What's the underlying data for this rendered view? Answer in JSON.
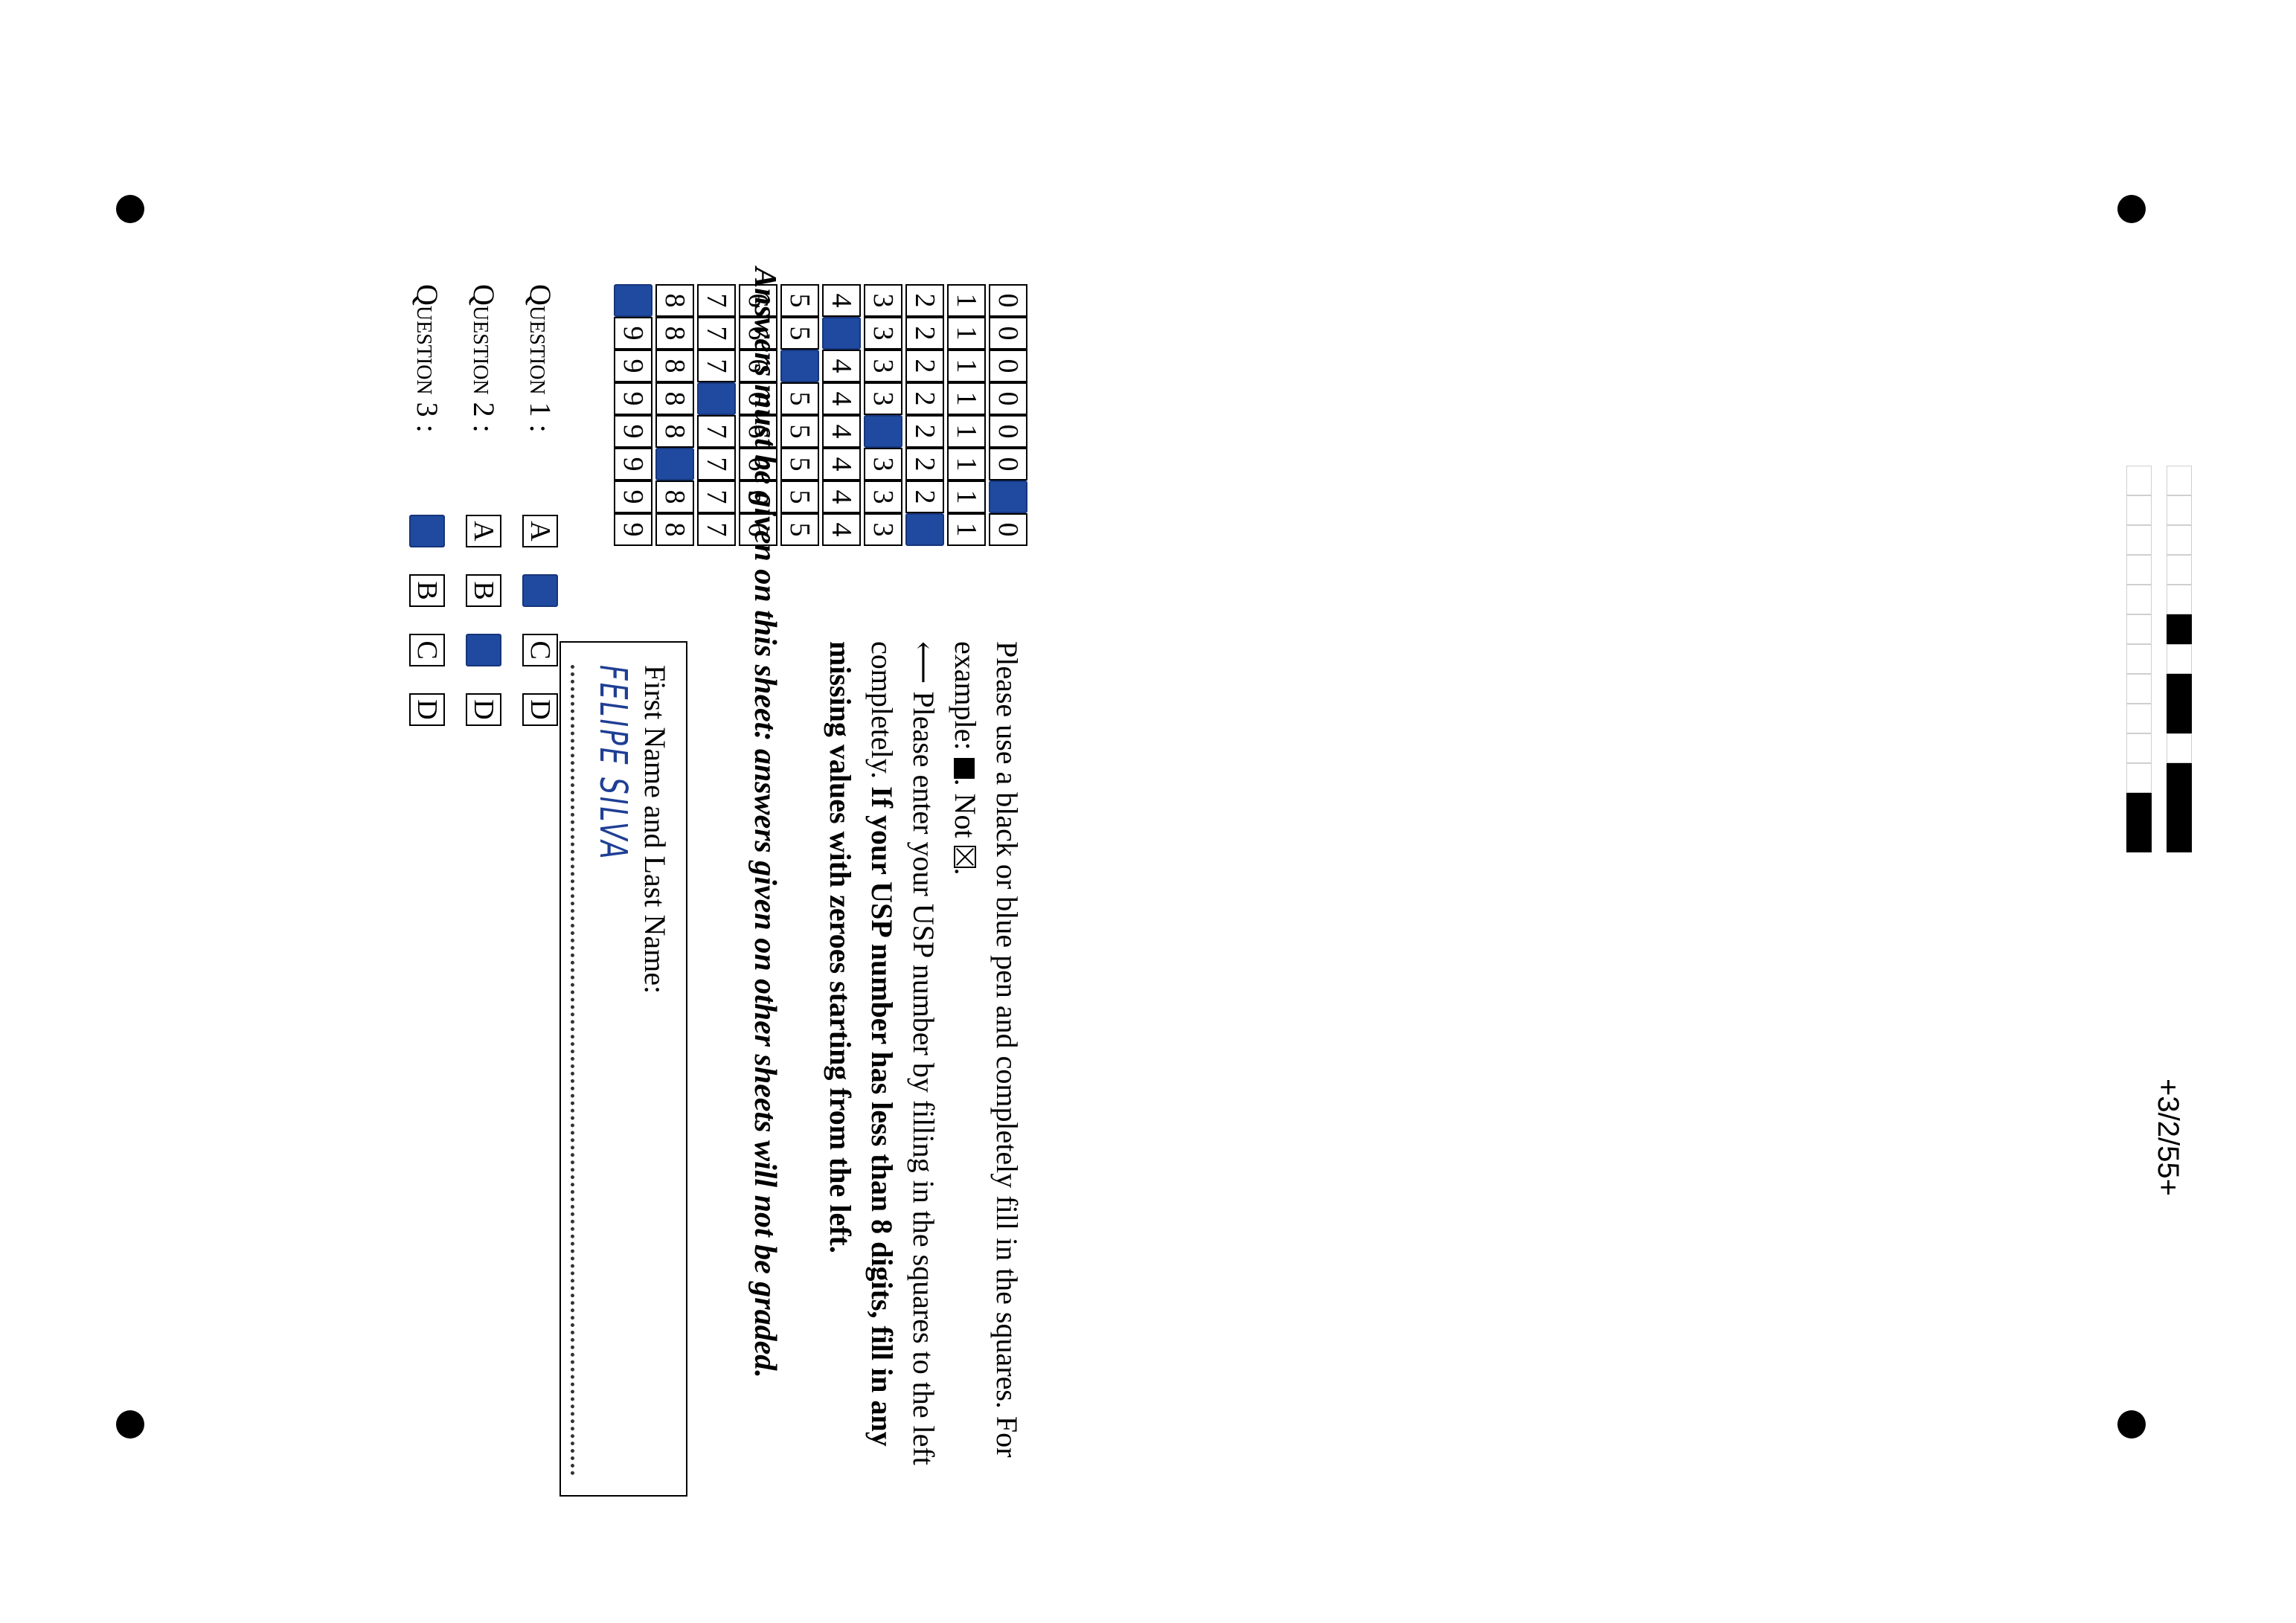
{
  "header": {
    "page_code": "+3/2/55+"
  },
  "barcode": {
    "rows": [
      [
        0,
        0,
        0,
        0,
        0,
        1,
        0,
        1,
        1,
        0,
        1,
        1,
        1
      ],
      [
        0,
        0,
        0,
        0,
        0,
        0,
        0,
        0,
        0,
        0,
        0,
        1,
        1
      ]
    ]
  },
  "usp_grid": {
    "digits": [
      "0",
      "1",
      "2",
      "3",
      "4",
      "5",
      "6",
      "7",
      "8",
      "9"
    ],
    "filled": [
      9,
      4,
      5,
      7,
      3,
      8,
      0,
      2
    ]
  },
  "instructions": {
    "pen_note_1": "Please use a black or blue pen and completely fill in the squares. For example:",
    "pen_note_2": ". Not",
    "pen_note_3": ".",
    "usp_note_1": "⟵ Please enter your USP number by filling in the squares to the left completely.",
    "usp_note_2": "If your USP number has less than 8 digits, fill in any missing values with zeroes starting from the left."
  },
  "name_field": {
    "label": "First Name and Last Name:",
    "value": "FELIPE SILVA"
  },
  "notice": "Answers must be given on this sheet: answers given on other sheets will not be graded.",
  "questions": [
    {
      "label": "Question 1 :",
      "options": [
        "A",
        "B",
        "C",
        "D"
      ],
      "selected": "B"
    },
    {
      "label": "Question 2 :",
      "options": [
        "A",
        "B",
        "C",
        "D"
      ],
      "selected": "C"
    },
    {
      "label": "Question 3 :",
      "options": [
        "A",
        "B",
        "C",
        "D"
      ],
      "selected": "A"
    }
  ]
}
